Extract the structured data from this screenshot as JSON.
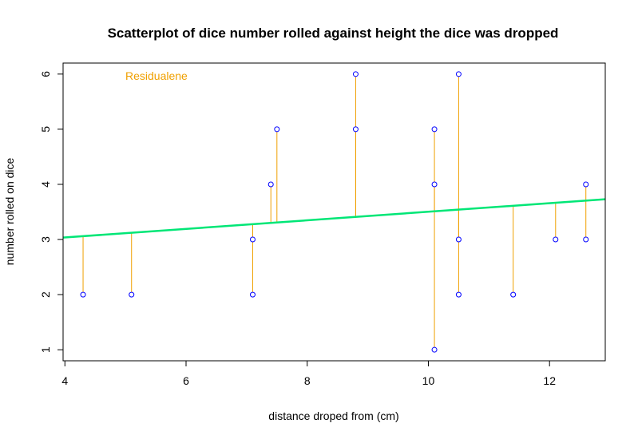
{
  "chart_data": {
    "type": "scatter",
    "title": "Scatterplot of dice number rolled against height the dice was dropped",
    "xlabel": "distance droped from (cm)",
    "ylabel": "number rolled on dice",
    "xlim": [
      3.97,
      12.92
    ],
    "ylim": [
      0.8,
      6.2
    ],
    "xticks": [
      4,
      6,
      8,
      10,
      12
    ],
    "yticks": [
      1,
      2,
      3,
      4,
      5,
      6
    ],
    "grid": false,
    "annotation": "Residualene",
    "regression_line": {
      "intercept": 2.726,
      "slope": 0.0777
    },
    "points": [
      {
        "x": 4.3,
        "y": 2
      },
      {
        "x": 5.1,
        "y": 2
      },
      {
        "x": 7.1,
        "y": 3
      },
      {
        "x": 7.1,
        "y": 2
      },
      {
        "x": 7.4,
        "y": 4
      },
      {
        "x": 7.5,
        "y": 5
      },
      {
        "x": 8.8,
        "y": 6
      },
      {
        "x": 8.8,
        "y": 5
      },
      {
        "x": 10.1,
        "y": 5
      },
      {
        "x": 10.1,
        "y": 4
      },
      {
        "x": 10.1,
        "y": 1
      },
      {
        "x": 10.5,
        "y": 6
      },
      {
        "x": 10.5,
        "y": 3
      },
      {
        "x": 10.5,
        "y": 2
      },
      {
        "x": 11.4,
        "y": 2
      },
      {
        "x": 12.1,
        "y": 3
      },
      {
        "x": 12.6,
        "y": 4
      },
      {
        "x": 12.6,
        "y": 3
      }
    ],
    "colors": {
      "points": "#0000ff",
      "residuals": "#f0a000",
      "regression": "#00e676",
      "annotation": "#f0a000"
    }
  }
}
